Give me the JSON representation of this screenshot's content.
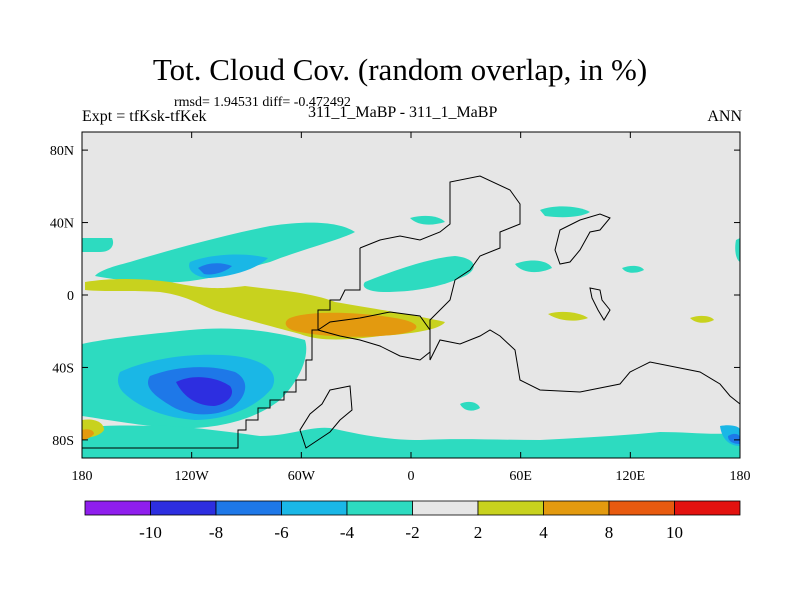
{
  "title": "Tot. Cloud Cov. (random overlap, in %)",
  "stats": "rmsd= 1.94531  diff= -0.472492",
  "expt_label": "Expt = tfKsk-tfKek",
  "runs_label": "311_1_MaBP - 311_1_MaBP",
  "season": "ANN",
  "lat_ticks": [
    {
      "label": "80N",
      "value": 80
    },
    {
      "label": "40N",
      "value": 40
    },
    {
      "label": "0",
      "value": 0
    },
    {
      "label": "40S",
      "value": -40
    },
    {
      "label": "80S",
      "value": -80
    }
  ],
  "lon_ticks": [
    {
      "label": "180",
      "value": 0
    },
    {
      "label": "120W",
      "value": 60
    },
    {
      "label": "60W",
      "value": 120
    },
    {
      "label": "0",
      "value": 180
    },
    {
      "label": "60E",
      "value": 240
    },
    {
      "label": "120E",
      "value": 300
    },
    {
      "label": "180",
      "value": 360
    }
  ],
  "colorbar": {
    "colors": [
      "#8f1eed",
      "#2d2ee0",
      "#1e78e8",
      "#1ab7e6",
      "#2ddbc0",
      "#e6e6e6",
      "#c8d21e",
      "#e39a0f",
      "#e85a0f",
      "#e3120f"
    ],
    "labels": [
      "-10",
      "-8",
      "-6",
      "-4",
      "-2",
      "2",
      "4",
      "8",
      "10"
    ]
  },
  "colors": {
    "background": "#e6e6e6",
    "outline": "#000000"
  }
}
